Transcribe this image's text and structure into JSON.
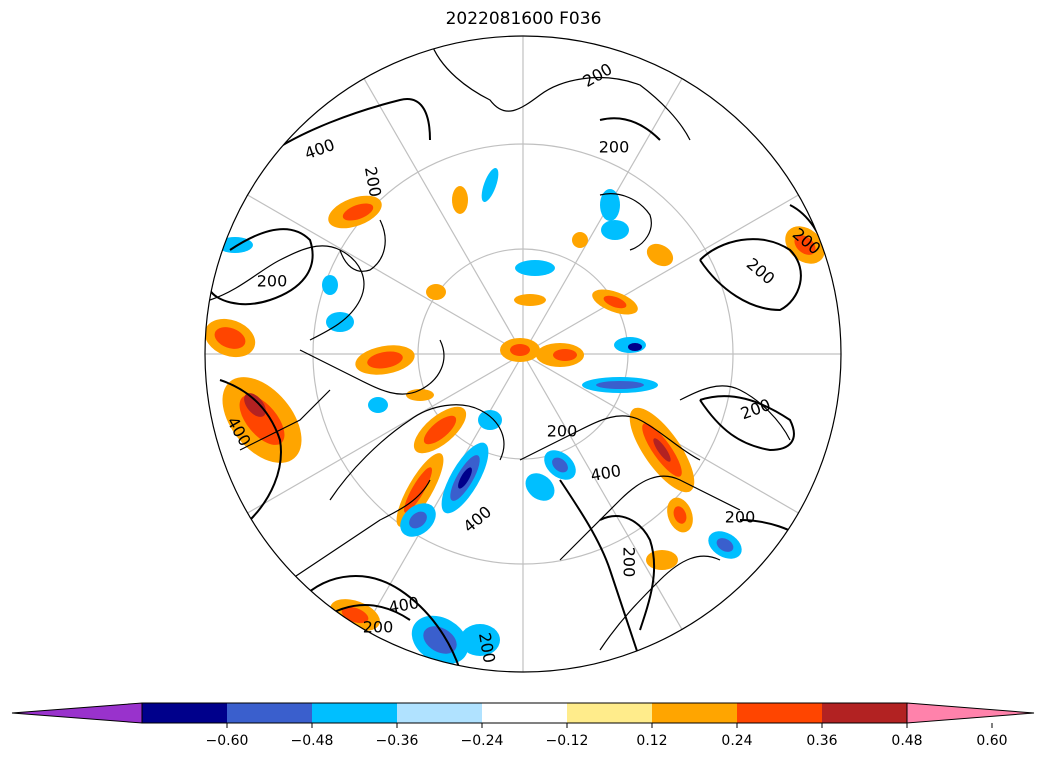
{
  "title": "2022081600 F036",
  "colorbar": {
    "extend": "both",
    "colors": [
      "#9932cc",
      "#00008b",
      "#3a5fcd",
      "#00bfff",
      "#b0e2ff",
      "#ffffff",
      "#ffec8b",
      "#ffa500",
      "#ff4500",
      "#b22222",
      "#ff82ab"
    ],
    "ticks": [
      "−0.60",
      "−0.48",
      "−0.36",
      "−0.24",
      "−0.12",
      "0.12",
      "0.24",
      "0.36",
      "0.48",
      "0.60"
    ]
  },
  "contour_labels": [
    "200",
    "200",
    "400",
    "200",
    "200",
    "200",
    "200",
    "200",
    "400",
    "400",
    "400",
    "200",
    "200",
    "200",
    "400",
    "200",
    "200"
  ],
  "colors": {
    "graticule": "#c0c0c0",
    "coastline": "#000000",
    "contour": "#000000"
  }
}
